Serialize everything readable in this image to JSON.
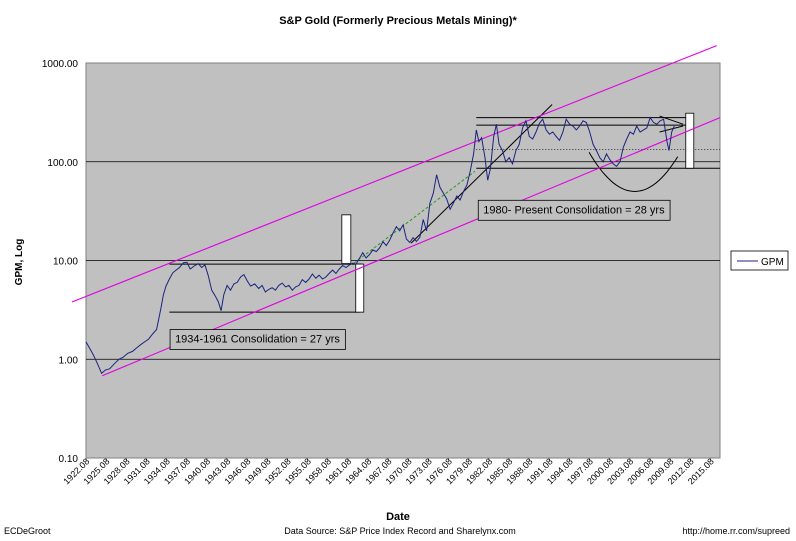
{
  "chart_data": {
    "type": "line",
    "scale": "log",
    "title": "S&P Gold (Formerly Precious Metals Mining)*",
    "xlabel": "Date",
    "ylabel": "GPM, Log",
    "ylim": [
      0.1,
      1000
    ],
    "y_ticks": [
      "0.10",
      "1.00",
      "10.00",
      "100.00",
      "1000.00"
    ],
    "x_ticks": [
      "1922.08",
      "1925.08",
      "1928.08",
      "1931.08",
      "1934.08",
      "1937.08",
      "1940.08",
      "1943.08",
      "1946.08",
      "1949.08",
      "1952.08",
      "1955.08",
      "1958.08",
      "1961.08",
      "1964.08",
      "1967.08",
      "1970.08",
      "1973.08",
      "1976.08",
      "1979.08",
      "1982.08",
      "1985.08",
      "1988.08",
      "1991.08",
      "1994.08",
      "1997.08",
      "2000.08",
      "2003.08",
      "2006.08",
      "2009.08",
      "2012.08",
      "2015.08"
    ],
    "xlim": [
      1922.08,
      2016.5
    ],
    "legend": {
      "position": "right",
      "entries": [
        "GPM"
      ]
    },
    "series": [
      {
        "name": "GPM",
        "color": "#1a237e",
        "points": [
          [
            1922.08,
            1.5
          ],
          [
            1922.6,
            1.3
          ],
          [
            1923.2,
            1.1
          ],
          [
            1923.8,
            0.9
          ],
          [
            1924.4,
            0.72
          ],
          [
            1925.0,
            0.78
          ],
          [
            1925.6,
            0.8
          ],
          [
            1926.3,
            0.9
          ],
          [
            1927.0,
            1.0
          ],
          [
            1927.6,
            1.05
          ],
          [
            1928.3,
            1.15
          ],
          [
            1929.0,
            1.2
          ],
          [
            1929.6,
            1.3
          ],
          [
            1930.2,
            1.4
          ],
          [
            1930.8,
            1.5
          ],
          [
            1931.4,
            1.6
          ],
          [
            1932.0,
            1.8
          ],
          [
            1932.6,
            2.0
          ],
          [
            1933.2,
            3.2
          ],
          [
            1933.6,
            4.5
          ],
          [
            1934.0,
            5.5
          ],
          [
            1934.5,
            6.5
          ],
          [
            1935.0,
            7.5
          ],
          [
            1935.5,
            8.0
          ],
          [
            1936.0,
            8.5
          ],
          [
            1936.6,
            9.5
          ],
          [
            1937.1,
            9.6
          ],
          [
            1937.6,
            8.2
          ],
          [
            1938.2,
            8.8
          ],
          [
            1938.8,
            9.3
          ],
          [
            1939.3,
            8.5
          ],
          [
            1939.8,
            9.0
          ],
          [
            1940.3,
            7.0
          ],
          [
            1940.8,
            5.0
          ],
          [
            1941.3,
            4.4
          ],
          [
            1941.8,
            3.8
          ],
          [
            1942.2,
            3.1
          ],
          [
            1942.6,
            4.5
          ],
          [
            1943.1,
            5.6
          ],
          [
            1943.6,
            5.0
          ],
          [
            1944.1,
            5.8
          ],
          [
            1944.6,
            6.0
          ],
          [
            1945.1,
            6.8
          ],
          [
            1945.6,
            7.2
          ],
          [
            1946.1,
            6.2
          ],
          [
            1946.6,
            5.5
          ],
          [
            1947.2,
            5.8
          ],
          [
            1947.8,
            5.2
          ],
          [
            1948.3,
            5.6
          ],
          [
            1948.8,
            4.8
          ],
          [
            1949.3,
            5.1
          ],
          [
            1949.8,
            5.3
          ],
          [
            1950.3,
            5.0
          ],
          [
            1950.8,
            5.6
          ],
          [
            1951.3,
            5.9
          ],
          [
            1951.8,
            5.4
          ],
          [
            1952.3,
            5.6
          ],
          [
            1952.8,
            5.0
          ],
          [
            1953.3,
            5.4
          ],
          [
            1953.8,
            5.6
          ],
          [
            1954.3,
            6.4
          ],
          [
            1954.8,
            6.0
          ],
          [
            1955.3,
            6.5
          ],
          [
            1955.8,
            7.3
          ],
          [
            1956.3,
            6.6
          ],
          [
            1956.8,
            7.1
          ],
          [
            1957.3,
            6.5
          ],
          [
            1957.8,
            6.8
          ],
          [
            1958.3,
            7.4
          ],
          [
            1958.8,
            8.0
          ],
          [
            1959.3,
            7.4
          ],
          [
            1959.8,
            8.2
          ],
          [
            1960.3,
            8.9
          ],
          [
            1960.8,
            8.5
          ],
          [
            1961.3,
            9.0
          ],
          [
            1961.8,
            9.4
          ],
          [
            1962.3,
            9.2
          ],
          [
            1962.8,
            10.5
          ],
          [
            1963.3,
            12.0
          ],
          [
            1963.8,
            10.6
          ],
          [
            1964.3,
            11.5
          ],
          [
            1964.8,
            12.8
          ],
          [
            1965.3,
            12.3
          ],
          [
            1965.8,
            13.4
          ],
          [
            1966.3,
            15.5
          ],
          [
            1966.8,
            14.2
          ],
          [
            1967.3,
            16.0
          ],
          [
            1967.8,
            19.0
          ],
          [
            1968.3,
            22.0
          ],
          [
            1968.8,
            20.0
          ],
          [
            1969.3,
            23.0
          ],
          [
            1969.8,
            16.5
          ],
          [
            1970.3,
            15.2
          ],
          [
            1970.8,
            17.0
          ],
          [
            1971.3,
            15.6
          ],
          [
            1971.8,
            17.2
          ],
          [
            1972.3,
            26.0
          ],
          [
            1972.8,
            20.0
          ],
          [
            1973.3,
            38.0
          ],
          [
            1973.8,
            48.0
          ],
          [
            1974.3,
            74.0
          ],
          [
            1974.8,
            55.0
          ],
          [
            1975.3,
            48.0
          ],
          [
            1975.8,
            42.0
          ],
          [
            1976.3,
            33.0
          ],
          [
            1976.8,
            38.0
          ],
          [
            1977.3,
            45.0
          ],
          [
            1977.8,
            41.0
          ],
          [
            1978.3,
            50.0
          ],
          [
            1978.8,
            58.0
          ],
          [
            1979.3,
            80.0
          ],
          [
            1979.8,
            120.0
          ],
          [
            1980.2,
            210.0
          ],
          [
            1980.6,
            160.0
          ],
          [
            1981.0,
            175.0
          ],
          [
            1981.5,
            110.0
          ],
          [
            1981.9,
            65.0
          ],
          [
            1982.3,
            85.0
          ],
          [
            1982.8,
            180.0
          ],
          [
            1983.2,
            240.0
          ],
          [
            1983.6,
            150.0
          ],
          [
            1984.1,
            130.0
          ],
          [
            1984.6,
            100.0
          ],
          [
            1985.1,
            110.0
          ],
          [
            1985.6,
            95.0
          ],
          [
            1986.1,
            130.0
          ],
          [
            1986.6,
            150.0
          ],
          [
            1987.1,
            220.0
          ],
          [
            1987.6,
            260.0
          ],
          [
            1988.1,
            180.0
          ],
          [
            1988.6,
            170.0
          ],
          [
            1989.1,
            200.0
          ],
          [
            1989.6,
            245.0
          ],
          [
            1990.1,
            270.0
          ],
          [
            1990.6,
            210.0
          ],
          [
            1991.1,
            190.0
          ],
          [
            1991.6,
            200.0
          ],
          [
            1992.1,
            180.0
          ],
          [
            1992.6,
            165.0
          ],
          [
            1993.1,
            200.0
          ],
          [
            1993.6,
            270.0
          ],
          [
            1994.1,
            240.0
          ],
          [
            1994.6,
            230.0
          ],
          [
            1995.1,
            210.0
          ],
          [
            1995.6,
            230.0
          ],
          [
            1996.1,
            260.0
          ],
          [
            1996.6,
            250.0
          ],
          [
            1997.1,
            200.0
          ],
          [
            1997.6,
            150.0
          ],
          [
            1998.1,
            130.0
          ],
          [
            1998.6,
            110.0
          ],
          [
            1999.1,
            100.0
          ],
          [
            1999.6,
            120.0
          ],
          [
            2000.1,
            105.0
          ],
          [
            2000.6,
            95.0
          ],
          [
            2001.1,
            90.0
          ],
          [
            2001.6,
            100.0
          ],
          [
            2002.1,
            140.0
          ],
          [
            2002.6,
            170.0
          ],
          [
            2003.1,
            200.0
          ],
          [
            2003.6,
            190.0
          ],
          [
            2004.1,
            230.0
          ],
          [
            2004.6,
            200.0
          ],
          [
            2005.1,
            210.0
          ],
          [
            2005.6,
            220.0
          ],
          [
            2006.1,
            280.0
          ],
          [
            2006.6,
            250.0
          ],
          [
            2007.1,
            240.0
          ],
          [
            2007.6,
            260.0
          ],
          [
            2008.1,
            270.0
          ],
          [
            2008.6,
            160.0
          ],
          [
            2008.9,
            130.0
          ],
          [
            2009.3,
            200.0
          ],
          [
            2009.7,
            230.0
          ]
        ]
      }
    ],
    "trendlines": [
      {
        "name": "upper-channel",
        "color": "#e000e0",
        "points": [
          [
            1920.0,
            3.8
          ],
          [
            2016.0,
            1500.0
          ]
        ]
      },
      {
        "name": "lower-channel",
        "color": "#e000e0",
        "points": [
          [
            1924.5,
            0.68
          ],
          [
            2016.5,
            280.0
          ]
        ]
      }
    ],
    "annotations": [
      {
        "text": "1934-1961 Consolidation = 27 yrs",
        "x_pos": 1934.6,
        "y_pos": 1.62
      },
      {
        "text": "1980- Present  Consolidation = 28 yrs",
        "x_pos": 1980.5,
        "y_pos": 33.0
      }
    ]
  },
  "footer": {
    "left": "ECDeGroot",
    "center": "Data Source: S&P Price Index Record and Sharelynx.com",
    "right": "http://home.rr.com/supreed"
  }
}
